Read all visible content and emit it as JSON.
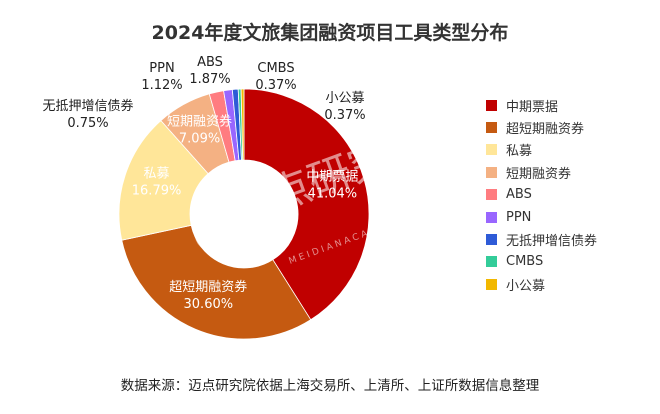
{
  "source_note": "数据来源：迈点研究院依据上海交易所、上清所、上证所数据信息整理",
  "watermark": {
    "text": "迈点研究院",
    "subtext": "M E I D I A N   A C A D E M Y"
  },
  "chart_data": {
    "type": "pie",
    "title": "2024年度文旅集团融资项目工具类型分布",
    "donut": true,
    "legend_position": "right",
    "slices": [
      {
        "name": "中期票据",
        "value": 41.04,
        "label": "41.04%",
        "color": "#c00000"
      },
      {
        "name": "超短期融资券",
        "value": 30.6,
        "label": "30.60%",
        "color": "#c55a11"
      },
      {
        "name": "私募",
        "value": 16.79,
        "label": "16.79%",
        "color": "#ffe699"
      },
      {
        "name": "短期融资券",
        "value": 7.09,
        "label": "7.09%",
        "color": "#f4b183"
      },
      {
        "name": "ABS",
        "value": 1.87,
        "label": "1.87%",
        "color": "#ff7c80"
      },
      {
        "name": "PPN",
        "value": 1.12,
        "label": "1.12%",
        "color": "#9966ff"
      },
      {
        "name": "无抵押增信债券",
        "value": 0.75,
        "label": "0.75%",
        "color": "#2e5bd7"
      },
      {
        "name": "CMBS",
        "value": 0.37,
        "label": "0.37%",
        "color": "#33cc99"
      },
      {
        "name": "小公募",
        "value": 0.37,
        "label": "0.37%",
        "color": "#f2b800"
      }
    ]
  }
}
